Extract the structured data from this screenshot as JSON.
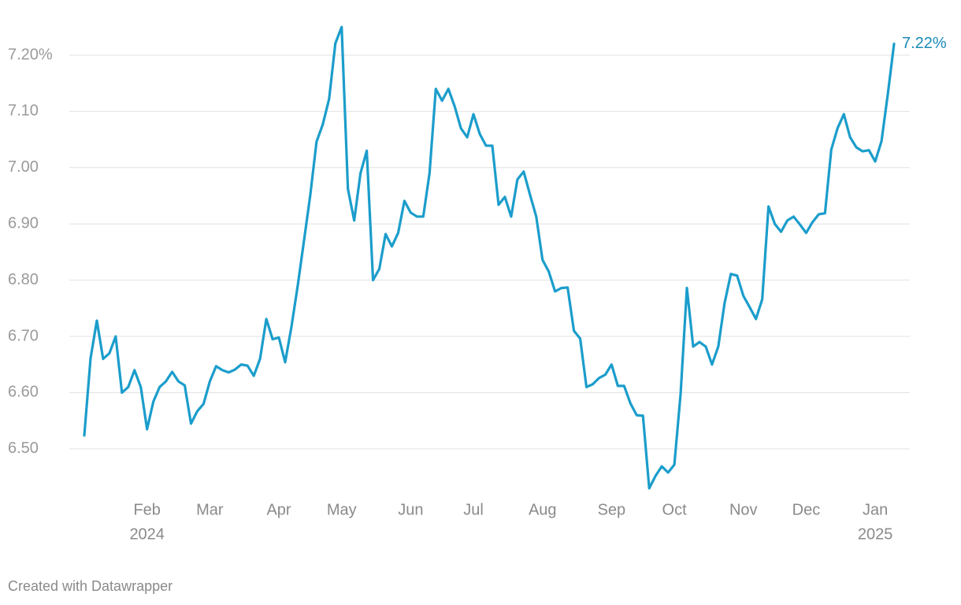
{
  "chart_data": {
    "type": "line",
    "categories": [
      null,
      null,
      null,
      null,
      null,
      null,
      null,
      null,
      null,
      null,
      [
        "Feb",
        "2024"
      ],
      null,
      null,
      null,
      null,
      null,
      null,
      null,
      null,
      null,
      "Mar",
      null,
      null,
      null,
      null,
      null,
      null,
      null,
      null,
      null,
      null,
      "Apr",
      null,
      null,
      null,
      null,
      null,
      null,
      null,
      null,
      null,
      "May",
      null,
      null,
      null,
      null,
      null,
      null,
      null,
      null,
      null,
      null,
      "Jun",
      null,
      null,
      null,
      null,
      null,
      null,
      null,
      null,
      null,
      "Jul",
      null,
      null,
      null,
      null,
      null,
      null,
      null,
      null,
      null,
      null,
      "Aug",
      null,
      null,
      null,
      null,
      null,
      null,
      null,
      null,
      null,
      null,
      "Sep",
      null,
      null,
      null,
      null,
      null,
      null,
      null,
      null,
      null,
      "Oct",
      null,
      null,
      null,
      null,
      null,
      null,
      null,
      null,
      null,
      null,
      "Nov",
      null,
      null,
      null,
      null,
      null,
      null,
      null,
      null,
      null,
      "Dec",
      null,
      null,
      null,
      null,
      null,
      null,
      null,
      null,
      null,
      null,
      [
        "Jan",
        "2025"
      ],
      null,
      null,
      null
    ],
    "values": [
      6.524,
      6.661,
      6.728,
      6.66,
      6.67,
      6.7,
      6.6,
      6.61,
      6.64,
      6.61,
      6.535,
      6.584,
      6.61,
      6.62,
      6.637,
      6.62,
      6.613,
      6.545,
      6.567,
      6.58,
      6.62,
      6.647,
      6.64,
      6.636,
      6.641,
      6.65,
      6.648,
      6.63,
      6.66,
      6.731,
      6.695,
      6.698,
      6.654,
      6.717,
      6.79,
      6.87,
      6.951,
      7.046,
      7.077,
      7.122,
      7.221,
      7.25,
      6.962,
      6.906,
      6.99,
      7.03,
      6.8,
      6.82,
      6.882,
      6.86,
      6.884,
      6.941,
      6.92,
      6.913,
      6.913,
      6.99,
      7.14,
      7.119,
      7.14,
      7.109,
      7.07,
      7.054,
      7.095,
      7.06,
      7.039,
      7.039,
      6.934,
      6.948,
      6.913,
      6.979,
      6.993,
      6.952,
      6.913,
      6.836,
      6.815,
      6.78,
      6.786,
      6.787,
      6.71,
      6.696,
      6.61,
      6.615,
      6.626,
      6.632,
      6.65,
      6.612,
      6.612,
      6.581,
      6.56,
      6.559,
      6.43,
      6.452,
      6.469,
      6.458,
      6.472,
      6.598,
      6.786,
      6.682,
      6.69,
      6.682,
      6.65,
      6.682,
      6.759,
      6.811,
      6.808,
      6.772,
      6.752,
      6.731,
      6.766,
      6.931,
      6.9,
      6.886,
      6.906,
      6.913,
      6.899,
      6.884,
      6.903,
      6.917,
      6.919,
      7.032,
      7.07,
      7.095,
      7.054,
      7.036,
      7.029,
      7.031,
      7.011,
      7.047,
      7.13,
      7.22
    ],
    "value_labels": [
      null,
      null,
      null,
      null,
      null,
      null,
      null,
      null,
      null,
      null,
      null,
      null,
      null,
      null,
      null,
      null,
      null,
      null,
      null,
      null,
      null,
      null,
      null,
      null,
      null,
      null,
      null,
      null,
      null,
      null,
      null,
      null,
      null,
      null,
      null,
      null,
      null,
      null,
      null,
      null,
      null,
      null,
      null,
      null,
      null,
      null,
      null,
      null,
      null,
      null,
      null,
      null,
      null,
      null,
      null,
      null,
      null,
      null,
      null,
      null,
      null,
      null,
      null,
      null,
      null,
      null,
      null,
      null,
      null,
      null,
      null,
      null,
      null,
      null,
      null,
      null,
      null,
      null,
      null,
      null,
      null,
      null,
      null,
      null,
      null,
      null,
      null,
      null,
      null,
      null,
      null,
      null,
      null,
      null,
      null,
      null,
      null,
      null,
      null,
      null,
      null,
      null,
      null,
      null,
      null,
      null,
      null,
      null,
      null,
      null,
      null,
      null,
      null,
      null,
      null,
      null,
      null,
      null,
      null,
      null,
      null,
      null,
      null,
      null,
      null,
      null,
      null,
      null,
      null,
      "7.22%"
    ],
    "color": "#1b9dcb",
    "ylim": [
      6.42,
      7.27
    ],
    "yticks": [
      {
        "value": 6.5,
        "label": "6.50"
      },
      {
        "value": 6.6,
        "label": "6.60"
      },
      {
        "value": 6.7,
        "label": "6.70"
      },
      {
        "value": 6.8,
        "label": "6.80"
      },
      {
        "value": 6.9,
        "label": "6.90"
      },
      {
        "value": 7.0,
        "label": "7.00"
      },
      {
        "value": 7.1,
        "label": "7.10"
      },
      {
        "value": 7.2,
        "label": "7.20%"
      }
    ],
    "grid": true,
    "credit": "Created with Datawrapper"
  }
}
